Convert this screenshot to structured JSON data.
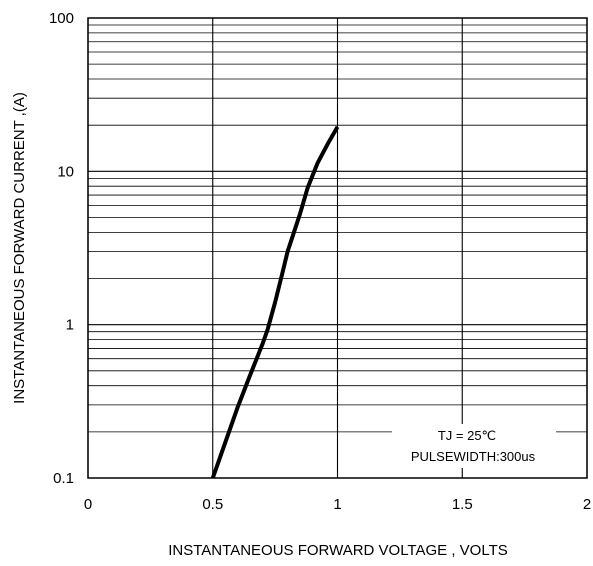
{
  "chart_data": {
    "type": "line",
    "xlabel": "INSTANTANEOUS FORWARD VOLTAGE , VOLTS",
    "ylabel": "INSTANTANEOUS  FORWARD CURRENT ,(A)",
    "xlim": [
      0,
      2
    ],
    "ylim": [
      0.1,
      100
    ],
    "y_scale": "log",
    "grid": true,
    "x_ticks": [
      0,
      0.5,
      1,
      1.5,
      2
    ],
    "x_tick_labels": [
      "0",
      "0.5",
      "1",
      "1.5",
      "2"
    ],
    "y_ticks": [
      0.1,
      1,
      10,
      100
    ],
    "y_tick_labels": [
      "0.1",
      "1",
      "10",
      "100"
    ],
    "series": [
      {
        "x": [
          0.5,
          0.55,
          0.6,
          0.65,
          0.7,
          0.72,
          0.75,
          0.78,
          0.8,
          0.85,
          0.88,
          0.92,
          0.96,
          1.0
        ],
        "y": [
          0.1,
          0.17,
          0.29,
          0.47,
          0.75,
          0.93,
          1.4,
          2.2,
          3.0,
          5.3,
          7.8,
          11.3,
          15.0,
          19.5
        ]
      }
    ],
    "annotations": [
      "TJ = 25℃",
      "PULSEWIDTH:300us"
    ]
  }
}
